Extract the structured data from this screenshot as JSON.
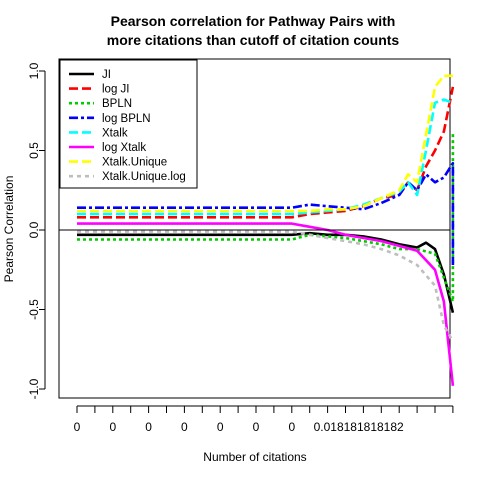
{
  "chart_data": {
    "type": "line",
    "title_lines": [
      "Pearson correlation for Pathway Pairs with",
      "more citations than cutoff of citation counts"
    ],
    "xlabel": "Number of citations",
    "ylabel": "Pearson Correlation",
    "ylim": [
      -1.0,
      1.0
    ],
    "yticks": [
      {
        "value": -1.0,
        "label": "-1.0"
      },
      {
        "value": -0.5,
        "label": "-0.5"
      },
      {
        "value": 0.0,
        "label": "0.0"
      },
      {
        "value": 0.5,
        "label": "0.5"
      },
      {
        "value": 1.0,
        "label": "1.0"
      }
    ],
    "xtick_count": 22,
    "xtick_labels": [
      {
        "index": 0,
        "label": "0"
      },
      {
        "index": 2,
        "label": "0"
      },
      {
        "index": 4,
        "label": "0"
      },
      {
        "index": 6,
        "label": "0"
      },
      {
        "index": 8,
        "label": "0"
      },
      {
        "index": 10,
        "label": "0"
      },
      {
        "index": 12,
        "label": "0"
      },
      {
        "index": 14,
        "label": "0.018181818182"
      }
    ],
    "reference_line": 0.0,
    "legend_position": "top-left",
    "series": [
      {
        "name": "JI",
        "color": "#000000",
        "dash": "",
        "points": [
          [
            0,
            -0.03
          ],
          [
            12,
            -0.03
          ],
          [
            13,
            -0.02
          ],
          [
            14,
            -0.03
          ],
          [
            15,
            -0.03
          ],
          [
            16,
            -0.04
          ],
          [
            17,
            -0.06
          ],
          [
            18,
            -0.09
          ],
          [
            19,
            -0.11
          ],
          [
            19.5,
            -0.08
          ],
          [
            20,
            -0.12
          ],
          [
            20.5,
            -0.28
          ],
          [
            21,
            -0.52
          ]
        ]
      },
      {
        "name": "log JI",
        "color": "#ff0000",
        "dash": "9,4",
        "points": [
          [
            0,
            0.08
          ],
          [
            12,
            0.08
          ],
          [
            13,
            0.1
          ],
          [
            14,
            0.11
          ],
          [
            15,
            0.12
          ],
          [
            16,
            0.15
          ],
          [
            17,
            0.2
          ],
          [
            18,
            0.22
          ],
          [
            18.5,
            0.3
          ],
          [
            19,
            0.25
          ],
          [
            19.5,
            0.4
          ],
          [
            20,
            0.5
          ],
          [
            20.5,
            0.62
          ],
          [
            21,
            0.9
          ]
        ]
      },
      {
        "name": "BPLN",
        "color": "#00cc00",
        "dash": "3,3",
        "points": [
          [
            0,
            -0.06
          ],
          [
            12,
            -0.06
          ],
          [
            13,
            -0.03
          ],
          [
            14,
            -0.04
          ],
          [
            15,
            -0.05
          ],
          [
            16,
            -0.07
          ],
          [
            17,
            -0.09
          ],
          [
            18,
            -0.12
          ],
          [
            19,
            -0.12
          ],
          [
            20,
            -0.15
          ],
          [
            20.5,
            -0.3
          ],
          [
            21,
            -0.45
          ],
          [
            21,
            -0.2
          ],
          [
            21,
            0.3
          ],
          [
            21,
            0.62
          ]
        ]
      },
      {
        "name": "log BPLN",
        "color": "#0000ff",
        "dash": "9,3,3,3",
        "points": [
          [
            0,
            0.14
          ],
          [
            12,
            0.14
          ],
          [
            13,
            0.16
          ],
          [
            14,
            0.15
          ],
          [
            15,
            0.14
          ],
          [
            16,
            0.13
          ],
          [
            17,
            0.17
          ],
          [
            18,
            0.22
          ],
          [
            18.5,
            0.3
          ],
          [
            19,
            0.25
          ],
          [
            19.5,
            0.35
          ],
          [
            20,
            0.3
          ],
          [
            20.5,
            0.33
          ],
          [
            21,
            0.42
          ],
          [
            21,
            0.0
          ],
          [
            21,
            -0.22
          ]
        ]
      },
      {
        "name": "Xtalk",
        "color": "#00ffff",
        "dash": "9,4",
        "points": [
          [
            0,
            0.1
          ],
          [
            12,
            0.1
          ],
          [
            13,
            0.11
          ],
          [
            14,
            0.12
          ],
          [
            15,
            0.13
          ],
          [
            16,
            0.16
          ],
          [
            17,
            0.2
          ],
          [
            18,
            0.24
          ],
          [
            18.5,
            0.3
          ],
          [
            19,
            0.22
          ],
          [
            19.5,
            0.5
          ],
          [
            20,
            0.8
          ],
          [
            20.5,
            0.82
          ],
          [
            21,
            0.8
          ]
        ]
      },
      {
        "name": "log Xtalk",
        "color": "#ff00ff",
        "dash": "",
        "points": [
          [
            0,
            0.04
          ],
          [
            12,
            0.04
          ],
          [
            13,
            0.02
          ],
          [
            14,
            0.0
          ],
          [
            15,
            -0.03
          ],
          [
            16,
            -0.05
          ],
          [
            17,
            -0.07
          ],
          [
            18,
            -0.1
          ],
          [
            19,
            -0.13
          ],
          [
            20,
            -0.25
          ],
          [
            20.5,
            -0.45
          ],
          [
            21,
            -0.98
          ]
        ]
      },
      {
        "name": "Xtalk.Unique",
        "color": "#ffff00",
        "dash": "9,4",
        "points": [
          [
            0,
            0.12
          ],
          [
            12,
            0.12
          ],
          [
            13,
            0.12
          ],
          [
            14,
            0.13
          ],
          [
            15,
            0.13
          ],
          [
            16,
            0.15
          ],
          [
            17,
            0.2
          ],
          [
            18,
            0.25
          ],
          [
            18.5,
            0.35
          ],
          [
            19,
            0.3
          ],
          [
            19.5,
            0.6
          ],
          [
            20,
            0.9
          ],
          [
            20.5,
            0.97
          ],
          [
            21,
            0.97
          ]
        ]
      },
      {
        "name": "Xtalk.Unique.log",
        "color": "#bebebe",
        "dash": "4,4",
        "points": [
          [
            0,
            -0.01
          ],
          [
            12,
            -0.01
          ],
          [
            13,
            -0.03
          ],
          [
            14,
            -0.05
          ],
          [
            15,
            -0.07
          ],
          [
            16,
            -0.09
          ],
          [
            17,
            -0.12
          ],
          [
            18,
            -0.16
          ],
          [
            19,
            -0.22
          ],
          [
            20,
            -0.35
          ],
          [
            20.5,
            -0.6
          ],
          [
            21,
            -0.7
          ]
        ]
      }
    ]
  }
}
